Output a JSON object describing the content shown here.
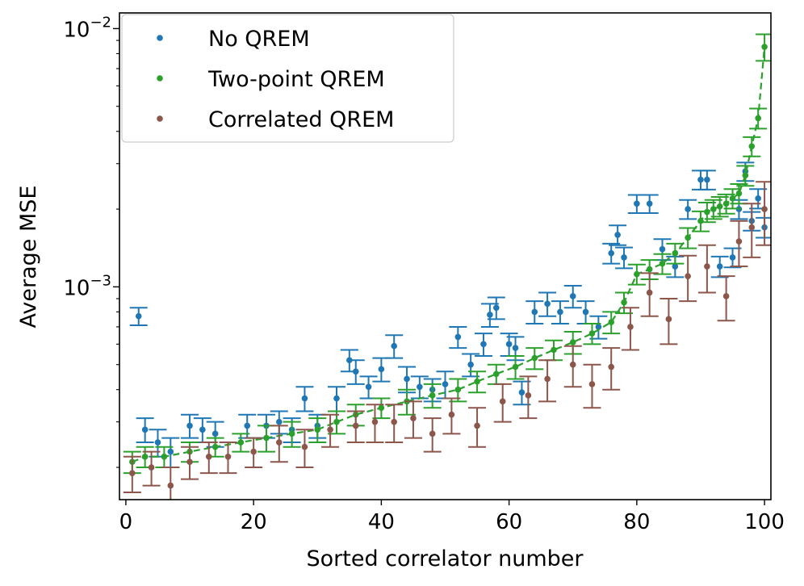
{
  "chart_data": {
    "type": "scatter",
    "title": "",
    "xlabel": "Sorted correlator number",
    "ylabel": "Average MSE",
    "xlim": [
      -1,
      101
    ],
    "ylim": [
      0.00015,
      0.0115
    ],
    "yscale": "log",
    "x_ticks": [
      0,
      20,
      40,
      60,
      80,
      100
    ],
    "x_tick_labels": [
      "0",
      "20",
      "40",
      "60",
      "80",
      "100"
    ],
    "y_ticks": [
      0.001,
      0.01
    ],
    "y_tick_labels": [
      {
        "base": "10",
        "exp": "−3"
      },
      {
        "base": "10",
        "exp": "−2"
      }
    ],
    "legend_position": "top-left",
    "series": [
      {
        "name": "No QREM",
        "color": "#1f77b4",
        "line": false,
        "x": [
          2,
          3,
          5,
          7,
          10,
          12,
          14,
          19,
          22,
          24,
          26,
          28,
          30,
          33,
          35,
          36,
          38,
          40,
          42,
          44,
          46,
          48,
          50,
          52,
          54,
          56,
          57,
          58,
          60,
          61,
          62,
          64,
          66,
          68,
          70,
          72,
          74,
          76,
          77,
          78,
          80,
          82,
          84,
          86,
          88,
          90,
          91,
          93,
          95,
          96,
          97,
          98,
          99,
          100
        ],
        "y": [
          0.00077,
          0.00028,
          0.00025,
          0.00023,
          0.00029,
          0.00028,
          0.00027,
          0.00029,
          0.00029,
          0.0003,
          0.00028,
          0.00037,
          0.00029,
          0.00037,
          0.00052,
          0.00047,
          0.00041,
          0.00048,
          0.00059,
          0.00044,
          0.00041,
          0.0004,
          0.00042,
          0.00064,
          0.0005,
          0.0006,
          0.00078,
          0.00083,
          0.0006,
          0.00058,
          0.00039,
          0.0008,
          0.00086,
          0.0008,
          0.00092,
          0.0008,
          0.0007,
          0.00135,
          0.00159,
          0.0013,
          0.0021,
          0.0021,
          0.0014,
          0.0012,
          0.002,
          0.0026,
          0.0026,
          0.0012,
          0.0013,
          0.002,
          0.0028,
          0.0018,
          0.0022,
          0.0017
        ],
        "yerr": [
          6e-05,
          3e-05,
          3e-05,
          3e-05,
          3e-05,
          3e-05,
          3e-05,
          3e-05,
          3e-05,
          3e-05,
          3e-05,
          4e-05,
          3e-05,
          4e-05,
          5e-05,
          5e-05,
          4e-05,
          5e-05,
          6e-05,
          5e-05,
          4e-05,
          4e-05,
          5e-05,
          6e-05,
          5e-05,
          6e-05,
          8e-05,
          8e-05,
          6e-05,
          6e-05,
          4e-05,
          8e-05,
          9e-05,
          8e-05,
          9e-05,
          8e-05,
          7e-05,
          0.00012,
          0.00014,
          0.00012,
          0.00017,
          0.00017,
          0.00013,
          0.00011,
          0.00017,
          0.00022,
          0.00022,
          0.00011,
          0.00011,
          0.00017,
          0.00023,
          0.00015,
          0.00019,
          0.00015
        ]
      },
      {
        "name": "Two-point QREM",
        "color": "#2ca02c",
        "line": true,
        "x": [
          1,
          3,
          6,
          10,
          14,
          18,
          22,
          26,
          30,
          33,
          36,
          40,
          44,
          48,
          52,
          55,
          58,
          61,
          64,
          67,
          70,
          73,
          76,
          78,
          80,
          82,
          84,
          86,
          88,
          90,
          91,
          92,
          93,
          94,
          95,
          96,
          97,
          98,
          99,
          100
        ],
        "y": [
          0.00021,
          0.00022,
          0.00022,
          0.00023,
          0.00024,
          0.00025,
          0.00026,
          0.00027,
          0.00028,
          0.0003,
          0.00032,
          0.00034,
          0.00036,
          0.00038,
          0.0004,
          0.00043,
          0.00046,
          0.00049,
          0.00053,
          0.00057,
          0.00061,
          0.00066,
          0.00073,
          0.00087,
          0.00112,
          0.00117,
          0.00123,
          0.00135,
          0.00155,
          0.0018,
          0.00195,
          0.002,
          0.00205,
          0.0021,
          0.0022,
          0.0023,
          0.0027,
          0.0035,
          0.0045,
          0.0085
        ],
        "yerr": [
          2e-05,
          2e-05,
          2e-05,
          2e-05,
          2e-05,
          2e-05,
          3e-05,
          3e-05,
          3e-05,
          3e-05,
          3e-05,
          3e-05,
          4e-05,
          4e-05,
          4e-05,
          4e-05,
          4e-05,
          5e-05,
          5e-05,
          5e-05,
          6e-05,
          6e-05,
          7e-05,
          8e-05,
          0.0001,
          0.0001,
          0.00011,
          0.00012,
          0.00014,
          0.00016,
          0.00017,
          0.00017,
          0.00018,
          0.00018,
          0.00019,
          0.0002,
          0.00024,
          0.0003,
          0.0004,
          0.001
        ]
      },
      {
        "name": "Correlated QREM",
        "color": "#8c564b",
        "line": false,
        "x": [
          1,
          4,
          7,
          10,
          13,
          16,
          20,
          24,
          28,
          32,
          36,
          39,
          42,
          45,
          48,
          51,
          55,
          59,
          63,
          66,
          70,
          73,
          76,
          79,
          82,
          85,
          88,
          91,
          94,
          96,
          98,
          100
        ],
        "y": [
          0.00019,
          0.0002,
          0.00017,
          0.00021,
          0.00022,
          0.00022,
          0.00023,
          0.00025,
          0.00024,
          0.00028,
          0.00029,
          0.0003,
          0.0003,
          0.00031,
          0.00027,
          0.00032,
          0.00029,
          0.00036,
          0.00038,
          0.00044,
          0.0005,
          0.00042,
          0.00049,
          0.0007,
          0.00095,
          0.00075,
          0.0011,
          0.0012,
          0.00092,
          0.0015,
          0.0017,
          0.002
        ],
        "yerr": [
          3e-05,
          3e-05,
          3e-05,
          3e-05,
          3e-05,
          3e-05,
          3e-05,
          4e-05,
          4e-05,
          4e-05,
          4e-05,
          5e-05,
          5e-05,
          5e-05,
          4e-05,
          5e-05,
          5e-05,
          6e-05,
          7e-05,
          8e-05,
          9e-05,
          8e-05,
          9e-05,
          0.00013,
          0.00018,
          0.00015,
          0.00022,
          0.00025,
          0.00018,
          0.0003,
          0.0004,
          0.00055
        ]
      }
    ]
  }
}
